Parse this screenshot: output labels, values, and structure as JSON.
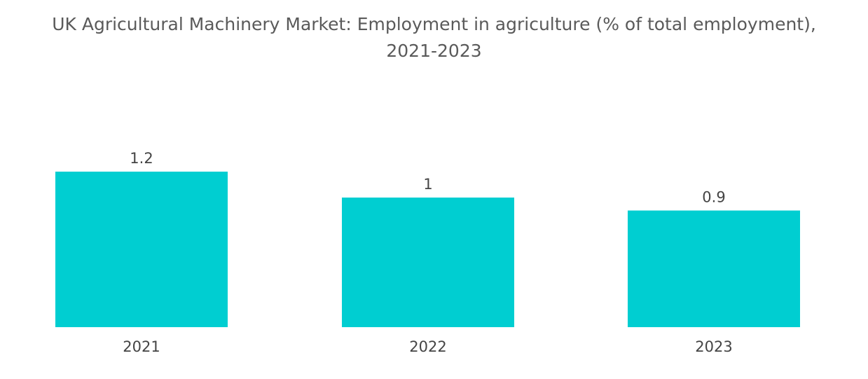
{
  "chart_data": {
    "type": "bar",
    "title_line1": "UK Agricultural Machinery Market: Employment in agriculture (% of total employment),",
    "title_line2": "2021-2023",
    "categories": [
      "2021",
      "2022",
      "2023"
    ],
    "values": [
      1.2,
      1,
      0.9
    ],
    "data_labels": [
      "1.2",
      "1",
      "0.9"
    ],
    "ylim": [
      0,
      1.2
    ],
    "grid": false,
    "bar_color": "#00CED1"
  }
}
